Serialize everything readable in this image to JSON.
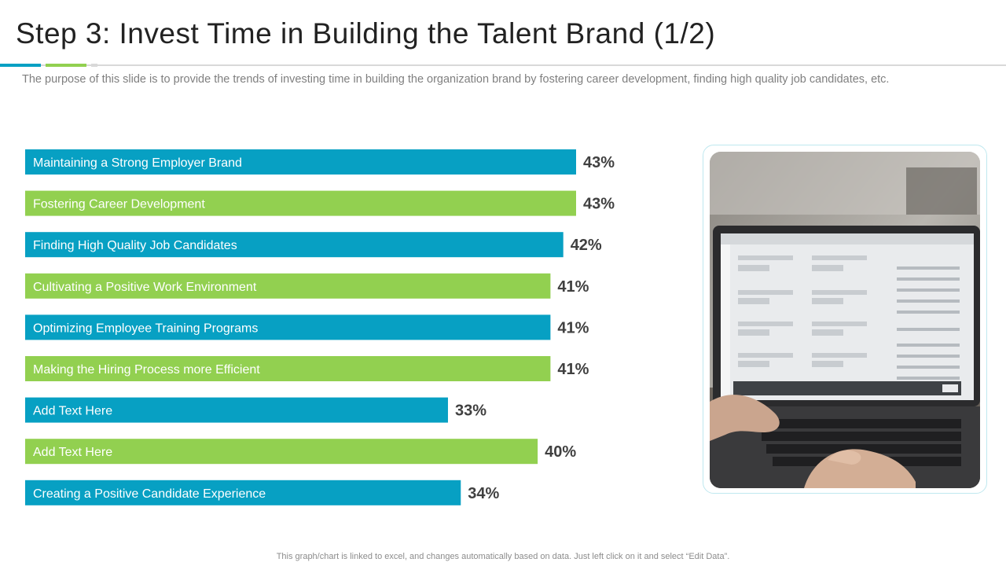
{
  "slide": {
    "title": "Step 3: Invest Time in Building the Talent Brand (1/2)",
    "subtitle": "The purpose of this slide is to provide the trends of investing time in building the organization brand by fostering career development, finding high quality job candidates, etc.",
    "footnote": "This graph/chart is linked to excel,  and changes automatically based on data. Just left click on it and select “Edit Data”."
  },
  "colors": {
    "blue": "#07a0c3",
    "green": "#92d050",
    "title": "#222222",
    "value_text": "#404040"
  },
  "photo": {
    "icon": "laptop-photo"
  },
  "chart_data": {
    "type": "bar",
    "orientation": "horizontal",
    "categories": [
      "Maintaining a Strong Employer Brand",
      "Fostering Career Development",
      "Finding High Quality Job Candidates",
      "Cultivating  a Positive Work Environment",
      "Optimizing Employee Training Programs",
      "Making the Hiring Process more Efficient",
      "Add Text Here",
      "Add Text Here",
      "Creating a Positive Candidate Experience"
    ],
    "values": [
      43,
      43,
      42,
      41,
      41,
      41,
      33,
      40,
      34
    ],
    "value_labels": [
      "43%",
      "43%",
      "42%",
      "41%",
      "41%",
      "41%",
      "33%",
      "40%",
      "34%"
    ],
    "bar_colors": [
      "#07a0c3",
      "#92d050",
      "#07a0c3",
      "#92d050",
      "#07a0c3",
      "#92d050",
      "#07a0c3",
      "#92d050",
      "#07a0c3"
    ],
    "xlim": [
      0,
      43
    ],
    "grid": false,
    "legend": "none"
  }
}
